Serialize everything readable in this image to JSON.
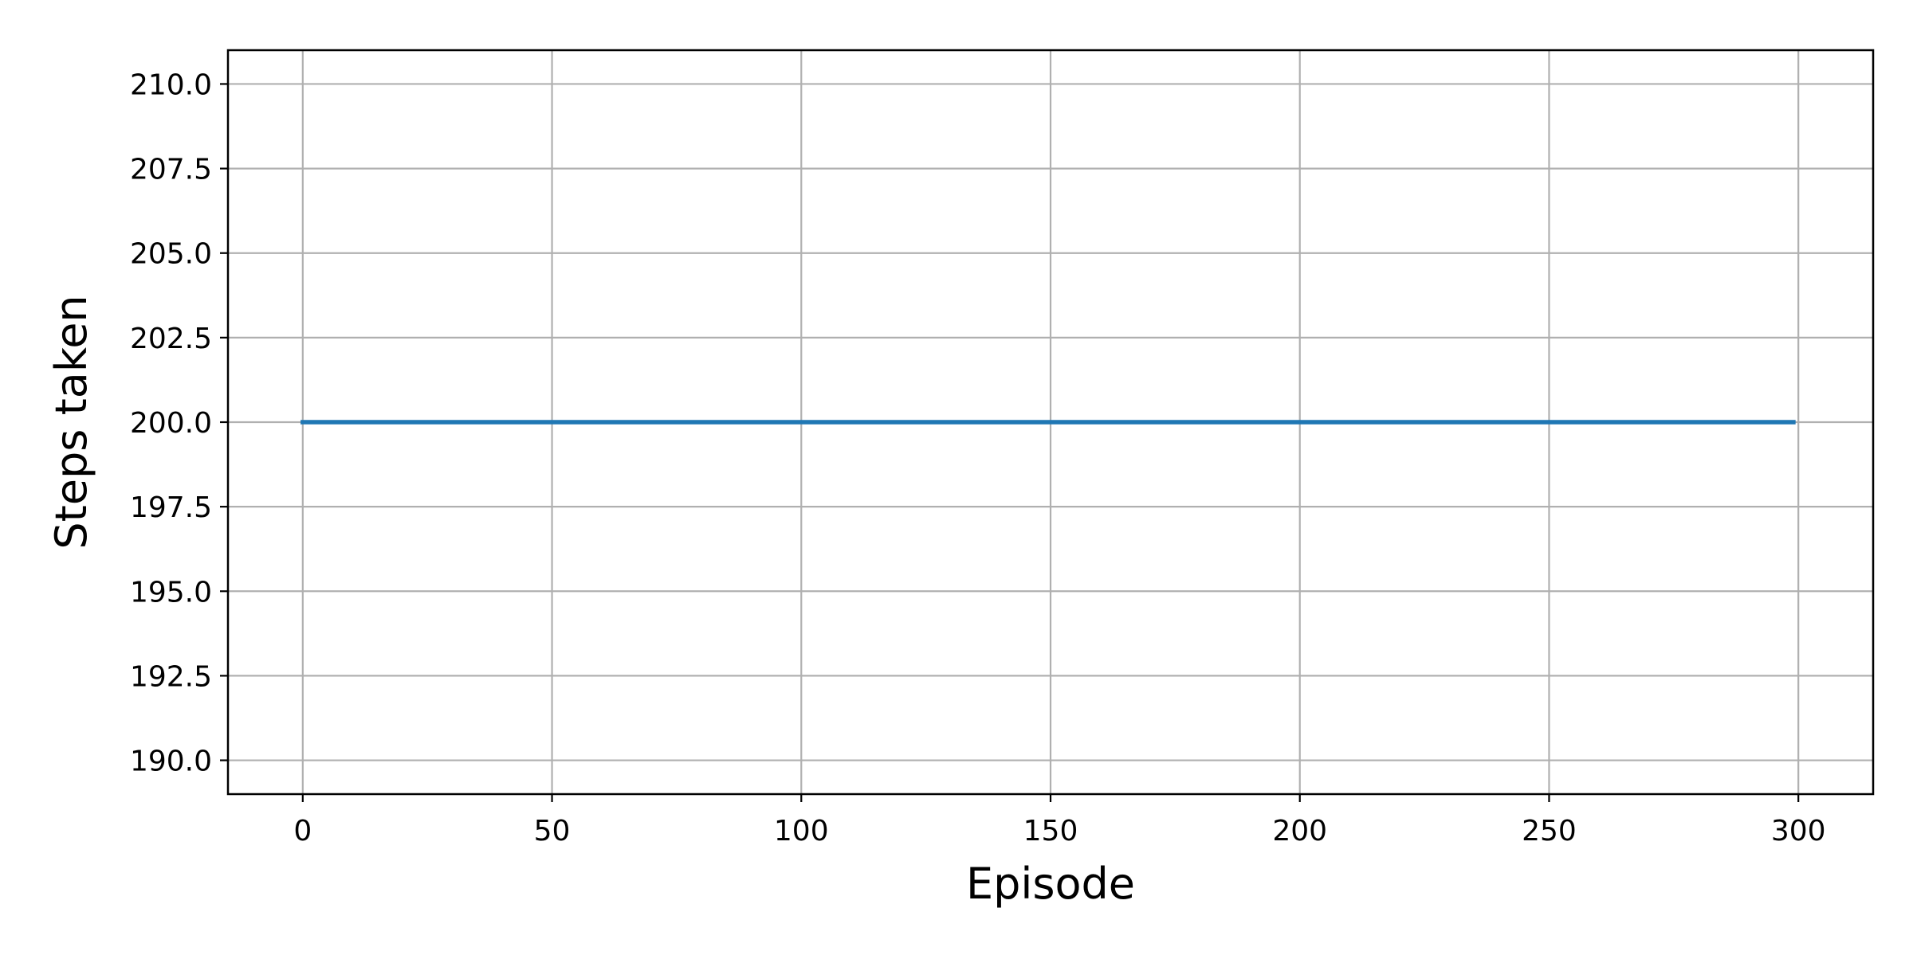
{
  "chart_data": {
    "type": "line",
    "title": "",
    "xlabel": "Episode",
    "ylabel": "Steps taken",
    "xlim": [
      -15,
      315
    ],
    "ylim": [
      189,
      211
    ],
    "xticks": [
      0,
      50,
      100,
      150,
      200,
      250,
      300
    ],
    "yticks": [
      190.0,
      192.5,
      195.0,
      197.5,
      200.0,
      202.5,
      205.0,
      207.5,
      210.0
    ],
    "xtick_labels": [
      "0",
      "50",
      "100",
      "150",
      "200",
      "250",
      "300"
    ],
    "ytick_labels": [
      "190.0",
      "192.5",
      "195.0",
      "197.5",
      "200.0",
      "202.5",
      "205.0",
      "207.5",
      "210.0"
    ],
    "grid": true,
    "legend": "none",
    "series": [
      {
        "color": "#1f77b4",
        "x": [
          0,
          299
        ],
        "y": [
          200.0,
          200.0
        ]
      }
    ]
  },
  "colors": {
    "grid": "#b0b0b0",
    "axes": "#000000",
    "line": "#1f77b4"
  }
}
